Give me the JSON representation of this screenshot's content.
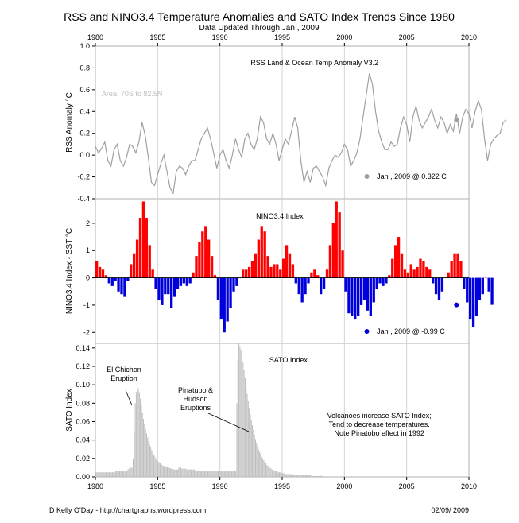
{
  "title": "RSS and NINO3.4 Temperature Anomalies and SATO Index Trends Since 1980",
  "subtitle": "Data Updated Through  Jan , 2009",
  "footer_left": "D Kelly O'Day - http://chartgraphs.wordpress.com",
  "footer_right": "02/09/ 2009",
  "colors": {
    "rss": "#a0a0a0",
    "nino_pos": "#ff0000",
    "nino_neg": "#0000dd",
    "sato": "#bdbdbd",
    "grid": "#d3d3d3"
  },
  "chart_data": [
    {
      "id": "rss",
      "type": "line",
      "panel_title": "RSS Land & Ocean Temp Anomaly V3.2",
      "ylabel": "RSS Anomaly °C",
      "note": "Area: 70S to 82.5N",
      "legend_text": "Jan , 2009  @  0.322  C",
      "ylim": [
        -0.4,
        1.0
      ],
      "yticks": [
        "-0.4",
        "-0.2",
        "0.0",
        "0.2",
        "0.4",
        "0.6",
        "0.8",
        "1.0"
      ],
      "xlim": [
        1980,
        2010
      ],
      "xticks": [
        "1980",
        "1985",
        "1990",
        "1995",
        "2000",
        "2005",
        "2010"
      ],
      "last_point": [
        2009.0,
        0.322
      ],
      "x_start": 1980.0,
      "x_step": 0.25,
      "values": [
        0.08,
        0.02,
        0.06,
        0.12,
        -0.05,
        -0.1,
        0.05,
        0.1,
        -0.05,
        -0.1,
        -0.02,
        0.1,
        0.08,
        0.02,
        0.12,
        0.3,
        0.18,
        -0.02,
        -0.25,
        -0.28,
        -0.18,
        -0.08,
        0.0,
        -0.15,
        -0.3,
        -0.35,
        -0.15,
        -0.1,
        -0.12,
        -0.18,
        -0.1,
        -0.05,
        -0.05,
        0.05,
        0.15,
        0.2,
        0.25,
        0.15,
        0.02,
        -0.12,
        0.0,
        0.05,
        -0.05,
        -0.12,
        0.0,
        0.15,
        0.05,
        -0.02,
        0.15,
        0.2,
        0.1,
        0.05,
        0.15,
        0.35,
        0.3,
        0.15,
        0.1,
        0.2,
        0.1,
        -0.05,
        0.05,
        0.15,
        0.1,
        0.22,
        0.35,
        0.25,
        -0.05,
        -0.25,
        -0.15,
        -0.25,
        -0.12,
        -0.1,
        -0.15,
        -0.2,
        -0.28,
        -0.12,
        -0.05,
        0.0,
        -0.02,
        0.02,
        0.1,
        0.05,
        -0.1,
        -0.05,
        0.02,
        0.15,
        0.35,
        0.55,
        0.75,
        0.65,
        0.4,
        0.22,
        0.12,
        0.05,
        0.05,
        0.12,
        0.08,
        0.1,
        0.25,
        0.35,
        0.28,
        0.12,
        0.35,
        0.45,
        0.32,
        0.25,
        0.3,
        0.35,
        0.42,
        0.32,
        0.25,
        0.35,
        0.3,
        0.2,
        0.28,
        0.22,
        0.38,
        0.2,
        0.35,
        0.42,
        0.38,
        0.25,
        0.4,
        0.5,
        0.42,
        0.15,
        -0.05,
        0.1,
        0.15,
        0.18,
        0.2,
        0.3,
        0.322
      ],
      "label_color": "#000000"
    },
    {
      "id": "nino",
      "type": "bar",
      "panel_title": "NINO3.4 Index",
      "ylabel": "NINO3.4 Index - SST °C",
      "legend_text": "Jan , 2009  @  -0.99  C",
      "ylim": [
        -2.4,
        2.9
      ],
      "yticks": [
        "-2",
        "-1",
        "0",
        "1",
        "2"
      ],
      "ytick_values": [
        -2,
        -1,
        0,
        1,
        2
      ],
      "xlim": [
        1980,
        2010
      ],
      "last_point": [
        2009.0,
        -0.99
      ],
      "x_start": 1980.0,
      "x_step": 0.25,
      "values": [
        0.6,
        0.4,
        0.3,
        0.1,
        -0.2,
        -0.3,
        -0.1,
        -0.5,
        -0.6,
        -0.7,
        -0.1,
        0.5,
        0.9,
        1.4,
        2.2,
        2.8,
        2.2,
        1.2,
        0.3,
        -0.4,
        -0.8,
        -1.0,
        -0.6,
        -0.6,
        -1.1,
        -0.7,
        -0.4,
        -0.3,
        -0.2,
        -0.3,
        -0.2,
        0.2,
        0.8,
        1.3,
        1.7,
        1.9,
        1.4,
        0.8,
        0.1,
        -0.8,
        -1.5,
        -2.0,
        -1.6,
        -1.1,
        -0.5,
        -0.3,
        0.0,
        0.3,
        0.3,
        0.4,
        0.6,
        0.9,
        1.4,
        1.9,
        1.7,
        0.8,
        0.4,
        0.5,
        0.5,
        0.3,
        0.7,
        1.2,
        0.9,
        0.5,
        -0.2,
        -0.6,
        -0.9,
        -0.6,
        -0.2,
        0.2,
        0.3,
        0.1,
        -0.6,
        -0.4,
        0.3,
        1.2,
        2.0,
        2.8,
        2.4,
        1.0,
        -0.5,
        -1.3,
        -1.4,
        -1.5,
        -1.4,
        -1.0,
        -0.8,
        -1.2,
        -1.4,
        -0.9,
        -0.4,
        -0.2,
        -0.3,
        -0.2,
        0.1,
        0.7,
        1.2,
        1.5,
        0.9,
        0.3,
        0.2,
        0.5,
        0.3,
        0.4,
        0.7,
        0.6,
        0.4,
        0.3,
        -0.2,
        -0.6,
        -0.8,
        -0.5,
        0.0,
        0.2,
        0.6,
        0.9,
        0.9,
        0.6,
        -0.4,
        -0.9,
        -1.5,
        -1.8,
        -1.4,
        -0.8,
        -0.6,
        0.0,
        -0.5,
        -0.99
      ],
      "label_color": "#000000"
    },
    {
      "id": "sato",
      "type": "bar",
      "panel_title": "SATO Index",
      "ylabel": "SATO Index",
      "ylim": [
        0.0,
        0.145
      ],
      "yticks": [
        "0.00",
        "0.02",
        "0.04",
        "0.06",
        "0.08",
        "0.10",
        "0.12",
        "0.14"
      ],
      "ytick_values": [
        0.0,
        0.02,
        0.04,
        0.06,
        0.08,
        0.1,
        0.12,
        0.14
      ],
      "xlim": [
        1980,
        2010
      ],
      "xticks": [
        "1980",
        "1985",
        "1990",
        "1995",
        "2000",
        "2005",
        "2010"
      ],
      "annotations": [
        {
          "text": "El Chichon\nEruption",
          "x": 1982.5,
          "y": 0.08
        },
        {
          "text": "Pinatubo &\nHudson\nEruptions",
          "x": 1991.8,
          "y": 0.06
        },
        {
          "text": "Volcanoes increase SATO Index;\nTend to decrease temperatures.\nNote Pinatobo effect in 1992",
          "x": 2000.0,
          "y": 0.045
        }
      ],
      "x_start": 1980.0,
      "x_step": 0.0833,
      "values": [
        0.005,
        0.005,
        0.005,
        0.005,
        0.005,
        0.005,
        0.005,
        0.005,
        0.005,
        0.005,
        0.005,
        0.005,
        0.005,
        0.005,
        0.005,
        0.005,
        0.005,
        0.005,
        0.005,
        0.006,
        0.006,
        0.006,
        0.006,
        0.006,
        0.006,
        0.006,
        0.006,
        0.006,
        0.006,
        0.006,
        0.007,
        0.008,
        0.009,
        0.01,
        0.01,
        0.01,
        0.02,
        0.05,
        0.08,
        0.092,
        0.098,
        0.096,
        0.092,
        0.085,
        0.078,
        0.07,
        0.063,
        0.057,
        0.052,
        0.047,
        0.043,
        0.039,
        0.035,
        0.032,
        0.029,
        0.026,
        0.024,
        0.022,
        0.02,
        0.018,
        0.017,
        0.016,
        0.015,
        0.014,
        0.013,
        0.012,
        0.012,
        0.011,
        0.011,
        0.011,
        0.01,
        0.01,
        0.009,
        0.009,
        0.009,
        0.008,
        0.008,
        0.008,
        0.008,
        0.008,
        0.01,
        0.01,
        0.01,
        0.009,
        0.009,
        0.009,
        0.009,
        0.009,
        0.008,
        0.008,
        0.008,
        0.008,
        0.008,
        0.008,
        0.008,
        0.008,
        0.007,
        0.007,
        0.007,
        0.007,
        0.007,
        0.007,
        0.006,
        0.006,
        0.006,
        0.006,
        0.006,
        0.006,
        0.006,
        0.006,
        0.006,
        0.006,
        0.006,
        0.006,
        0.006,
        0.006,
        0.006,
        0.006,
        0.006,
        0.006,
        0.006,
        0.006,
        0.006,
        0.006,
        0.006,
        0.006,
        0.006,
        0.006,
        0.006,
        0.006,
        0.006,
        0.006,
        0.007,
        0.006,
        0.006,
        0.007,
        0.08,
        0.128,
        0.145,
        0.142,
        0.138,
        0.132,
        0.125,
        0.116,
        0.107,
        0.098,
        0.09,
        0.082,
        0.075,
        0.068,
        0.062,
        0.056,
        0.051,
        0.046,
        0.041,
        0.037,
        0.034,
        0.03,
        0.027,
        0.025,
        0.022,
        0.02,
        0.018,
        0.016,
        0.015,
        0.013,
        0.012,
        0.011,
        0.01,
        0.009,
        0.008,
        0.008,
        0.007,
        0.007,
        0.006,
        0.006,
        0.005,
        0.005,
        0.005,
        0.004,
        0.004,
        0.004,
        0.004,
        0.003,
        0.003,
        0.003,
        0.003,
        0.003,
        0.003,
        0.003,
        0.003,
        0.002,
        0.002,
        0.002,
        0.002,
        0.002,
        0.002,
        0.002,
        0.002,
        0.002,
        0.002,
        0.002,
        0.002,
        0.002,
        0.002,
        0.002,
        0.002,
        0.002,
        0.001,
        0.001,
        0.001,
        0.001,
        0.001,
        0.001,
        0.001,
        0.001,
        0.001,
        0.001,
        0.001,
        0.001
      ],
      "label_color": "#000000"
    }
  ]
}
